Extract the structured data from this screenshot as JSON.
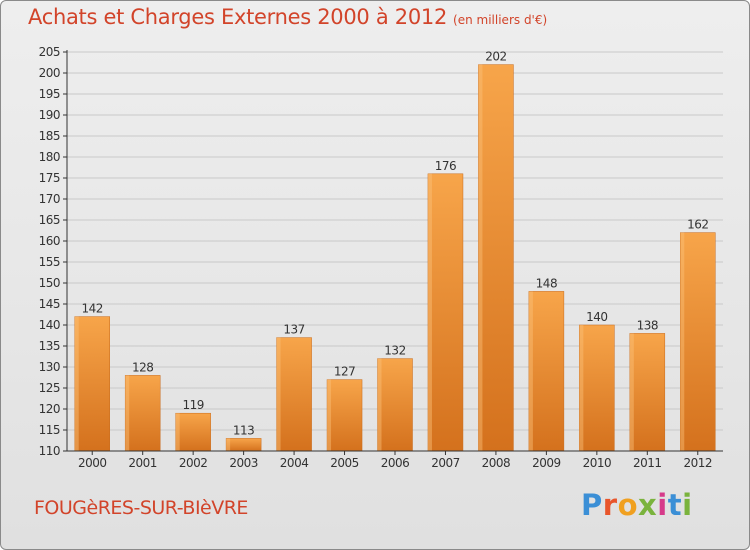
{
  "header": {
    "title": "Achats et Charges Externes 2000 à 2012",
    "unit_note": "(en milliers d'€)"
  },
  "footer": {
    "commune": "FOUGèRES-SUR-BIèVRE",
    "logo_text": "Proxiti",
    "logo_colors": [
      "#3b8fd6",
      "#e8552b",
      "#f0a020",
      "#7ab33d",
      "#d63a8a",
      "#3b8fd6",
      "#7ab33d"
    ]
  },
  "colors": {
    "title": "#d2442a",
    "bar_light": "#f7a54a",
    "bar_dark": "#d4711d",
    "grid": "#c9c9c9",
    "axis": "#333333"
  },
  "chart_data": {
    "type": "bar",
    "title": "Achats et Charges Externes 2000 à 2012",
    "subtitle": "(en milliers d'€)",
    "xlabel": "",
    "ylabel": "",
    "categories": [
      "2000",
      "2001",
      "2002",
      "2003",
      "2004",
      "2005",
      "2006",
      "2007",
      "2008",
      "2009",
      "2010",
      "2011",
      "2012"
    ],
    "values": [
      142,
      128,
      119,
      113,
      137,
      127,
      132,
      176,
      202,
      148,
      140,
      138,
      162
    ],
    "ylim": [
      110,
      205
    ],
    "yticks": [
      110,
      115,
      120,
      125,
      130,
      135,
      140,
      145,
      150,
      155,
      160,
      165,
      170,
      175,
      180,
      185,
      190,
      195,
      200,
      205
    ],
    "grid": true,
    "legend": "none"
  }
}
